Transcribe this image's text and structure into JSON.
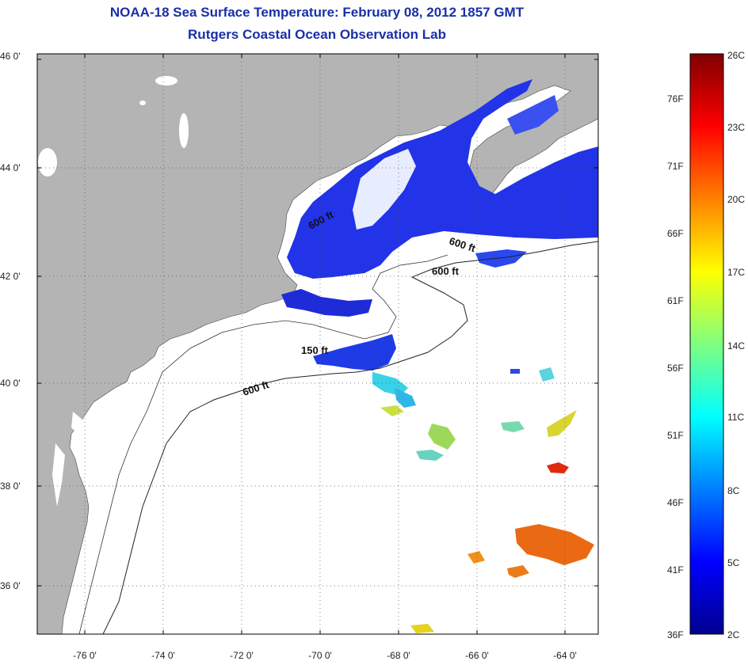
{
  "title": "NOAA-18 Sea Surface Temperature:  February 08, 2012 1857 GMT",
  "subtitle": "Rutgers Coastal Ocean Observation Lab",
  "map": {
    "lat_labels": [
      "46 0'",
      "44 0'",
      "42 0'",
      "40 0'",
      "38 0'",
      "36 0'"
    ],
    "lon_labels": [
      "-76 0'",
      "-74 0'",
      "-72 0'",
      "-70 0'",
      "-68 0'",
      "-66 0'",
      "-64 0'"
    ],
    "contour_labels": [
      "600 ft",
      "600 ft",
      "600 ft",
      "150 ft",
      "600 ft"
    ],
    "land_color": "#b4b4b4",
    "ocean_color": "#ffffff"
  },
  "colorbar": {
    "fahrenheit_labels": [
      "76F",
      "71F",
      "66F",
      "61F",
      "56F",
      "51F",
      "46F",
      "41F",
      "36F"
    ],
    "celsius_labels": [
      "26C",
      "23C",
      "20C",
      "17C",
      "14C",
      "11C",
      "8C",
      "5C",
      "2C"
    ]
  }
}
